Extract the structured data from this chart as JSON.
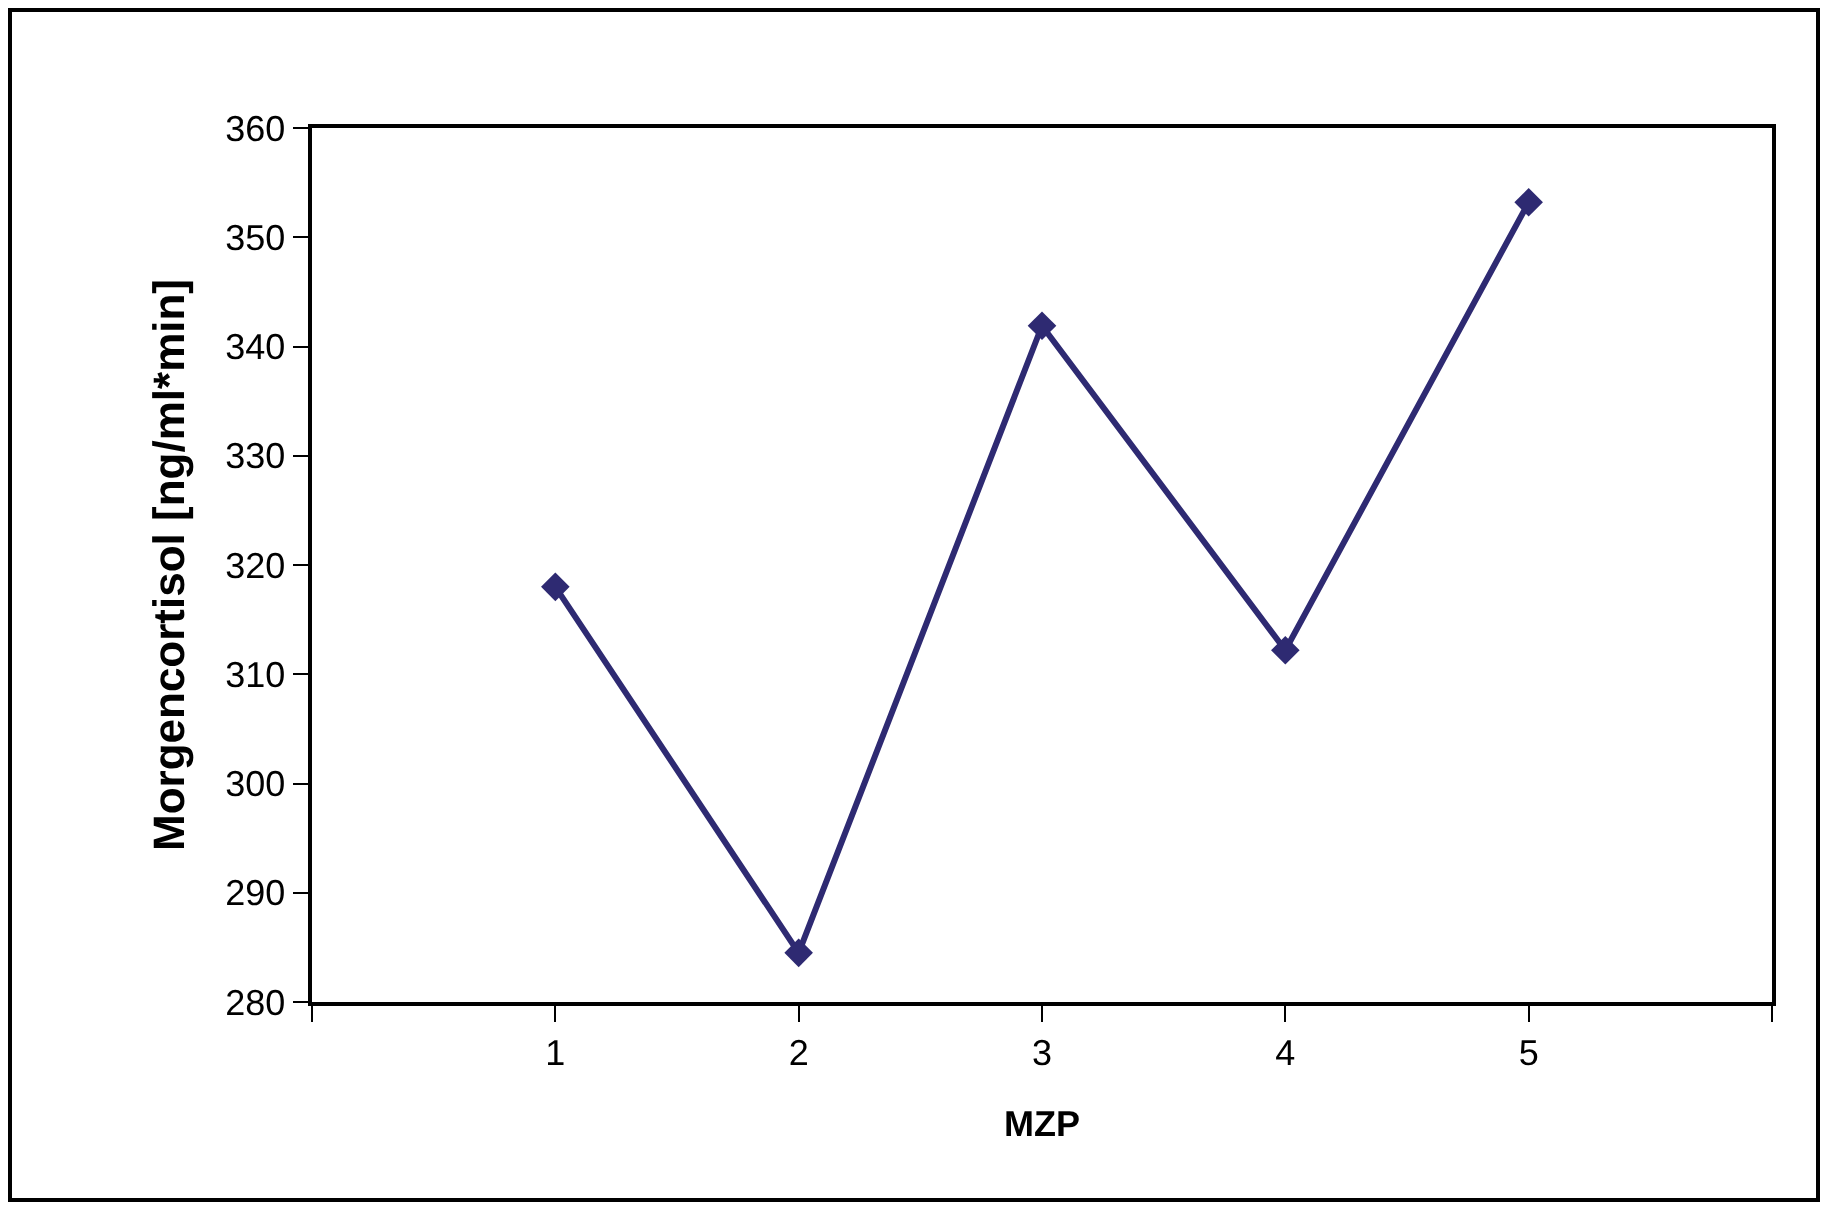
{
  "chart_data": {
    "type": "line",
    "xlabel": "MZP",
    "ylabel": "Morgencortisol [ng/ml*min]",
    "x": [
      1,
      2,
      3,
      4,
      5
    ],
    "series": [
      {
        "color": "#2e2a72",
        "values": [
          318,
          284.5,
          341.9,
          312.2,
          353.2
        ]
      }
    ],
    "xlim": [
      0,
      6
    ],
    "xticks": [
      {
        "value": 0,
        "label": null
      },
      1,
      2,
      3,
      4,
      5,
      {
        "value": 6,
        "label": null
      }
    ],
    "ylim": [
      280,
      360
    ],
    "yticks": [
      280,
      290,
      300,
      310,
      320,
      330,
      340,
      350,
      360
    ],
    "grid": false,
    "marker": "diamond",
    "line_style": "solid"
  }
}
